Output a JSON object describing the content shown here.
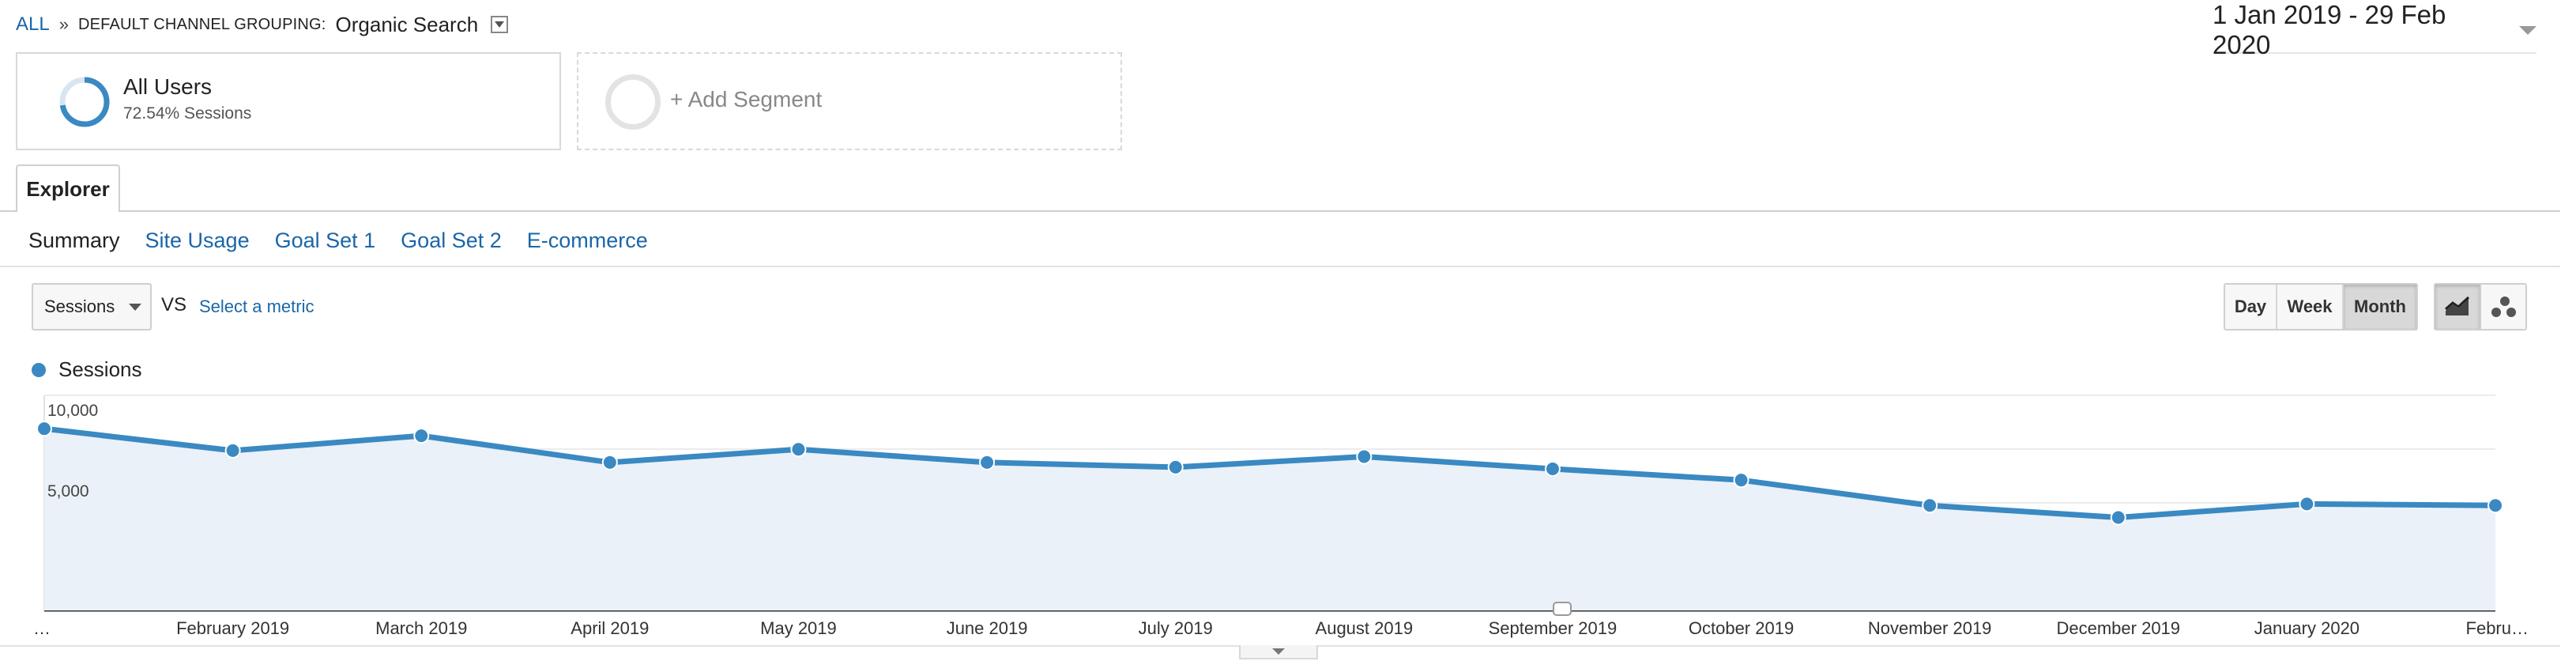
{
  "breadcrumb": {
    "all": "ALL",
    "separator": "»",
    "dimension": "DEFAULT CHANNEL GROUPING:",
    "value": "Organic Search"
  },
  "date_range": "1 Jan 2019 - 29 Feb 2020",
  "segments": {
    "all_users": {
      "title": "All Users",
      "subtitle": "72.54% Sessions",
      "ring_share": 0.7254
    },
    "add": {
      "label": "+ Add Segment"
    }
  },
  "explorer_tab": "Explorer",
  "subtabs": [
    "Summary",
    "Site Usage",
    "Goal Set 1",
    "Goal Set 2",
    "E-commerce"
  ],
  "metric": {
    "selected": "Sessions",
    "vs": "VS",
    "select_metric": "Select a metric"
  },
  "granularity": [
    "Day",
    "Week",
    "Month"
  ],
  "granularity_active": "Month",
  "icons": {
    "line_chart": "line-chart-icon",
    "motion_chart": "motion-chart-icon"
  },
  "colors": {
    "series": "#3a89c2",
    "area": "#eaf1f8",
    "link": "#1a66a8"
  },
  "chart_data": {
    "type": "area",
    "series": [
      {
        "name": "Sessions",
        "values": [
          8450,
          7430,
          8120,
          6880,
          7490,
          6880,
          6660,
          7150,
          6580,
          6060,
          4880,
          4320,
          4950,
          4880
        ]
      }
    ],
    "categories": [
      "…",
      "February 2019",
      "March 2019",
      "April 2019",
      "May 2019",
      "June 2019",
      "July 2019",
      "August 2019",
      "September 2019",
      "October 2019",
      "November 2019",
      "December 2019",
      "January 2020",
      "Febru…"
    ],
    "yticks": [
      10000,
      5000
    ],
    "ytick_labels": [
      "10,000",
      "5,000"
    ],
    "ylim": [
      0,
      10000
    ]
  }
}
